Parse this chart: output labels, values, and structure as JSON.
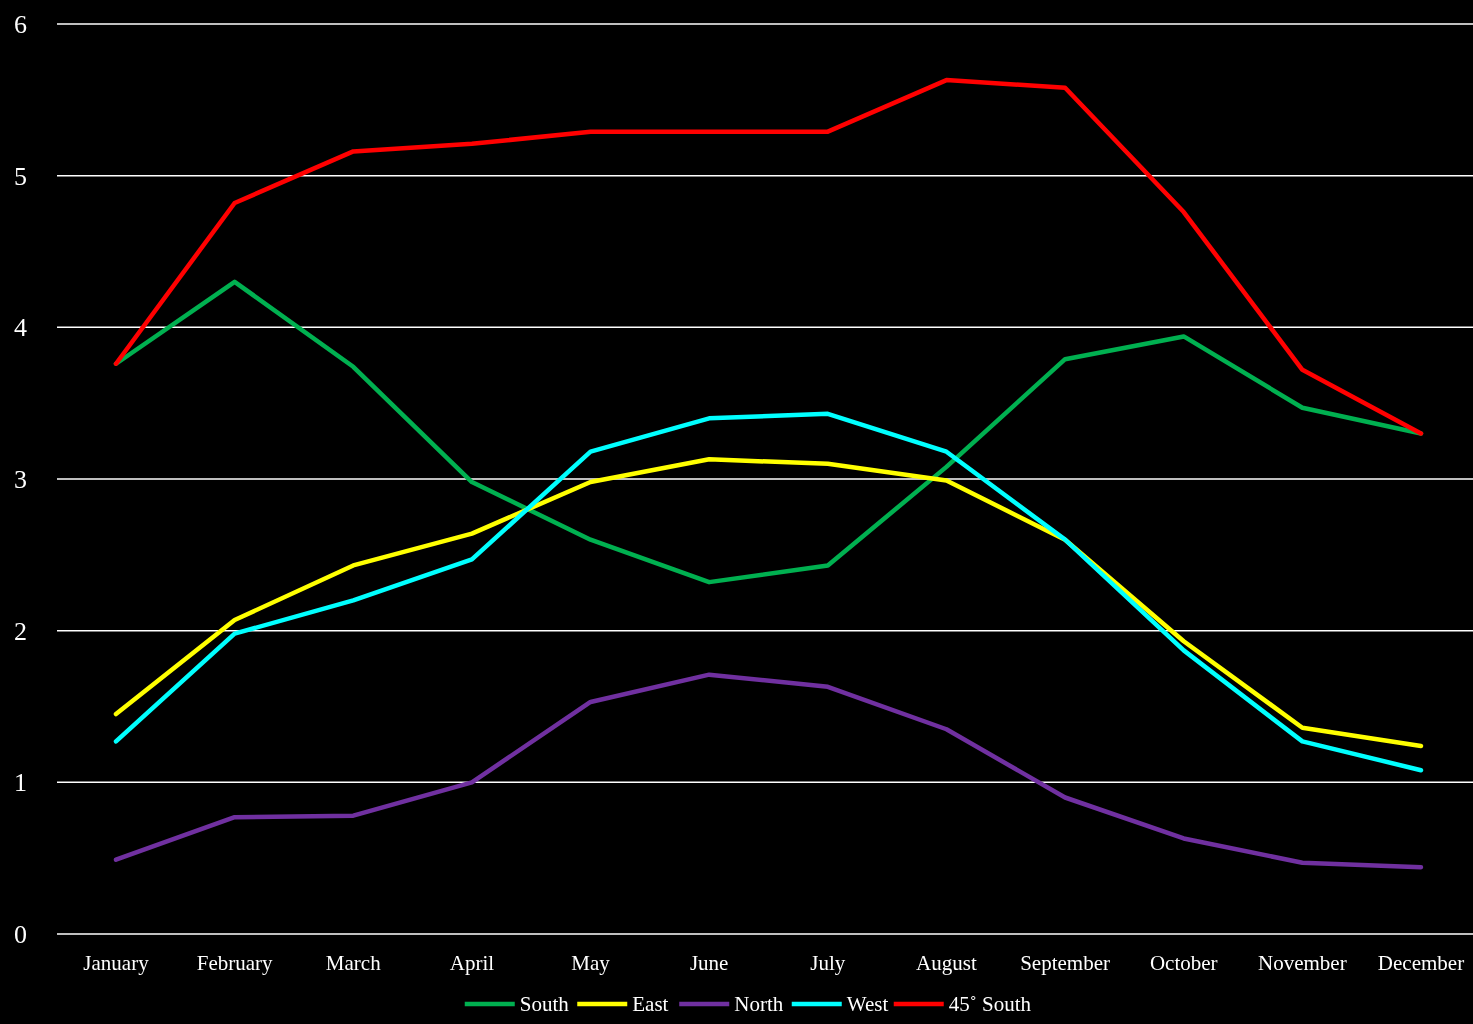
{
  "chart_data": {
    "type": "line",
    "categories": [
      "January",
      "February",
      "March",
      "April",
      "May",
      "June",
      "July",
      "August",
      "September",
      "October",
      "November",
      "December"
    ],
    "series": [
      {
        "name": "South",
        "color": "#00b050",
        "values": [
          3.76,
          4.3,
          3.74,
          2.98,
          2.6,
          2.32,
          2.43,
          3.08,
          3.79,
          3.94,
          3.47,
          3.3
        ]
      },
      {
        "name": "East",
        "color": "#ffff00",
        "values": [
          1.45,
          2.07,
          2.43,
          2.64,
          2.98,
          3.13,
          3.1,
          2.99,
          2.6,
          1.93,
          1.36,
          1.24
        ]
      },
      {
        "name": "North",
        "color": "#7030a0",
        "values": [
          0.49,
          0.77,
          0.78,
          1.0,
          1.53,
          1.71,
          1.63,
          1.35,
          0.9,
          0.63,
          0.47,
          0.44
        ]
      },
      {
        "name": "West",
        "color": "#00ffff",
        "values": [
          1.27,
          1.98,
          2.2,
          2.47,
          3.18,
          3.4,
          3.43,
          3.18,
          2.6,
          1.87,
          1.27,
          1.08
        ]
      },
      {
        "name": "45˚ South",
        "color": "#ff0000",
        "values": [
          3.76,
          4.82,
          5.16,
          5.21,
          5.29,
          5.29,
          5.29,
          5.63,
          5.58,
          4.76,
          3.72,
          3.3
        ]
      }
    ],
    "ylim": [
      0,
      6
    ],
    "yticks": [
      0,
      1,
      2,
      3,
      4,
      5,
      6
    ],
    "grid": "y",
    "legend": "bottom",
    "marker": "none",
    "line_style": "solid"
  }
}
